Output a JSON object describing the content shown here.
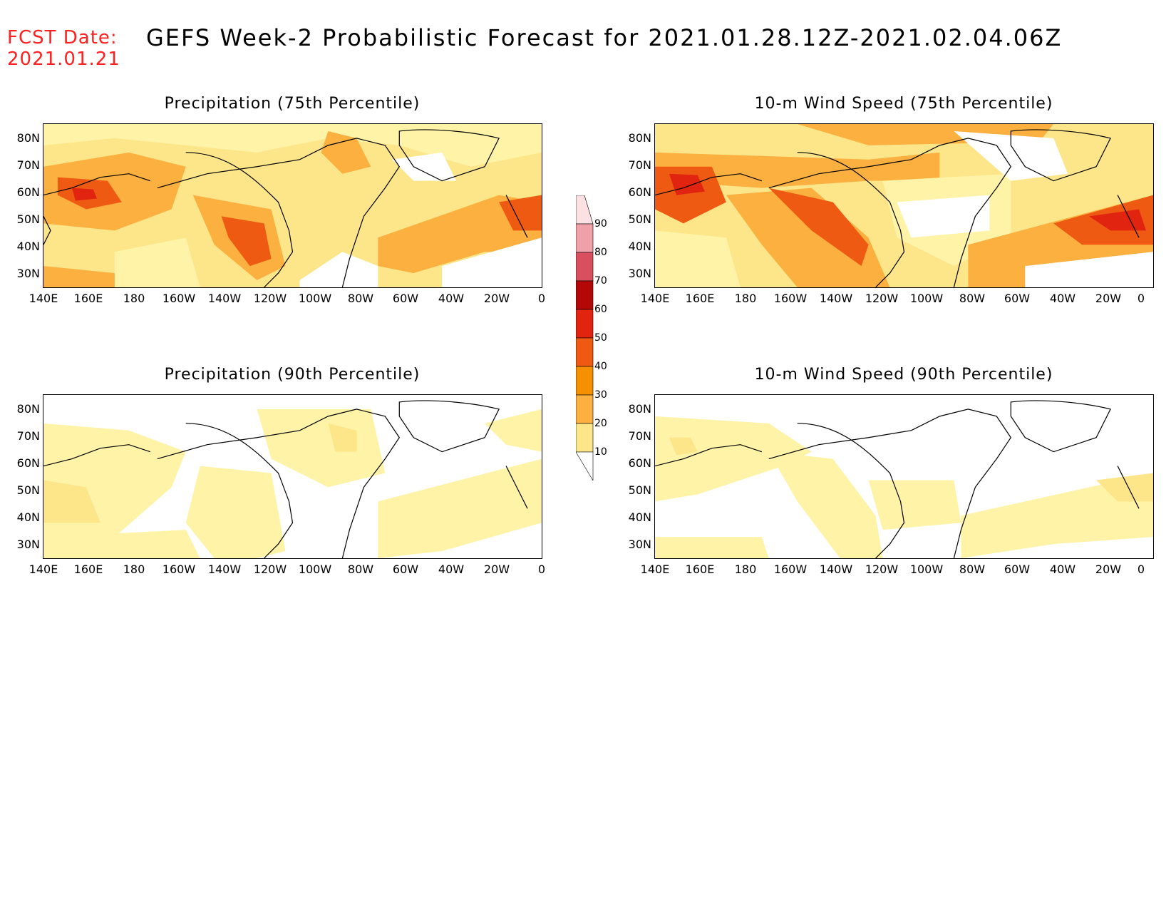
{
  "header": {
    "fcst_line1": "FCST Date:",
    "fcst_line2": "2021.01.21",
    "title": "GEFS Week-2 Probabilistic Forecast for 2021.01.28.12Z-2021.02.04.06Z"
  },
  "panels": [
    {
      "title": "Precipitation (75th Percentile)"
    },
    {
      "title": "10-m Wind Speed (75th Percentile)"
    },
    {
      "title": "Precipitation (90th Percentile)"
    },
    {
      "title": "10-m Wind Speed (90th Percentile)"
    }
  ],
  "lat_labels": [
    "80N",
    "70N",
    "60N",
    "50N",
    "40N",
    "30N"
  ],
  "lon_labels": [
    "140E",
    "160E",
    "180",
    "160W",
    "140W",
    "120W",
    "100W",
    "80W",
    "60W",
    "40W",
    "20W",
    "0"
  ],
  "colorbar": {
    "labels": [
      "90",
      "80",
      "70",
      "60",
      "50",
      "40",
      "30",
      "20",
      "10"
    ],
    "colors": [
      "#ffffff",
      "#fff8b0",
      "#fde68a",
      "#fbb040",
      "#f59000",
      "#ee5a12",
      "#e02410",
      "#b40808",
      "#d85060",
      "#f0a0a8",
      "#fbe0e4"
    ]
  },
  "colors": {
    "fcst": "#ff2020",
    "land_line": "#000000"
  }
}
